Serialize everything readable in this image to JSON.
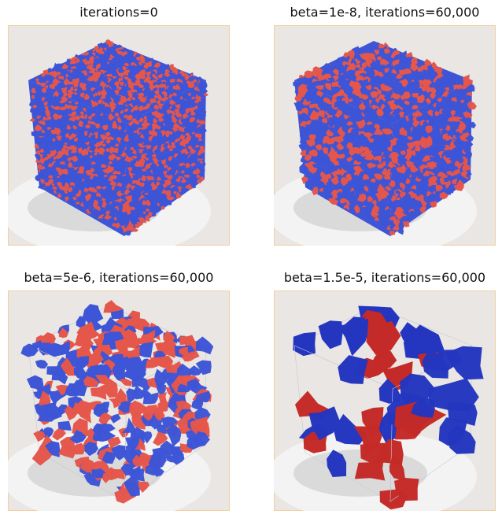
{
  "panels": [
    {
      "title": "iterations=0",
      "scale": "fine"
    },
    {
      "title": "beta=1e-8, iterations=60,000",
      "scale": "fine-medium"
    },
    {
      "title": "beta=5e-6, iterations=60,000",
      "scale": "medium"
    },
    {
      "title": "beta=1.5e-5, iterations=60,000",
      "scale": "coarse"
    }
  ],
  "colors": {
    "red": "#e5564b",
    "red_dark": "#c42a27",
    "blue": "#3d55d6",
    "blue_dark": "#2436bf",
    "background": "#e9e6e3",
    "floor": "#f3f3f3",
    "shadow": "#d8d8d8"
  }
}
